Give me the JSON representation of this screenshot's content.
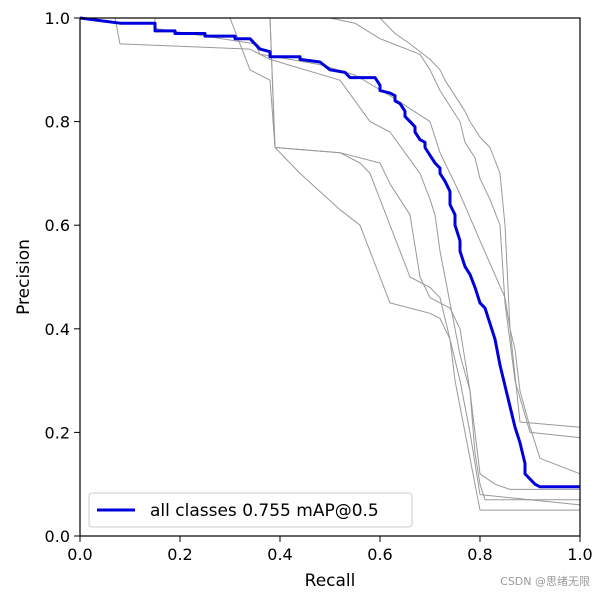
{
  "chart_data": {
    "type": "line",
    "title": "",
    "xlabel": "Recall",
    "ylabel": "Precision",
    "xlim": [
      0,
      1
    ],
    "ylim": [
      0,
      1
    ],
    "xticks": [
      "0.0",
      "0.2",
      "0.4",
      "0.6",
      "0.8",
      "1.0"
    ],
    "yticks": [
      "0.0",
      "0.2",
      "0.4",
      "0.6",
      "0.8",
      "1.0"
    ],
    "grid": false,
    "legend_position": "lower-left",
    "series": [
      {
        "role": "per-class",
        "color": "#999999",
        "x": [
          0,
          0.15,
          0.15,
          0.35,
          0.36,
          0.42,
          0.48,
          0.55,
          0.62,
          0.7,
          0.72,
          0.76,
          0.8,
          0.85,
          0.86,
          0.87,
          0.88,
          0.9,
          0.92,
          1.0
        ],
        "y": [
          1.0,
          1.0,
          0.98,
          0.95,
          0.93,
          0.92,
          0.91,
          0.89,
          0.85,
          0.8,
          0.74,
          0.66,
          0.57,
          0.46,
          0.4,
          0.36,
          0.28,
          0.21,
          0.15,
          0.12
        ]
      },
      {
        "role": "per-class",
        "color": "#999999",
        "x": [
          0,
          0.5,
          0.55,
          0.6,
          0.68,
          0.7,
          0.72,
          0.74,
          0.76,
          0.77,
          0.79,
          0.8,
          0.82,
          0.84,
          0.85,
          0.87,
          0.9,
          1.0
        ],
        "y": [
          1.0,
          1.0,
          0.99,
          0.96,
          0.93,
          0.9,
          0.86,
          0.83,
          0.8,
          0.76,
          0.73,
          0.69,
          0.65,
          0.6,
          0.45,
          0.3,
          0.2,
          0.19
        ]
      },
      {
        "role": "per-class",
        "color": "#999999",
        "x": [
          0,
          0.6,
          0.63,
          0.66,
          0.7,
          0.72,
          0.73,
          0.75,
          0.77,
          0.78,
          0.8,
          0.82,
          0.84,
          0.85,
          0.86,
          0.88,
          1.0
        ],
        "y": [
          1.0,
          1.0,
          0.97,
          0.95,
          0.92,
          0.9,
          0.88,
          0.85,
          0.82,
          0.8,
          0.77,
          0.75,
          0.7,
          0.6,
          0.4,
          0.22,
          0.21
        ]
      },
      {
        "role": "per-class",
        "color": "#999999",
        "x": [
          0,
          0.07,
          0.08,
          0.34,
          0.38,
          0.52,
          0.58,
          0.62,
          0.65,
          0.68,
          0.7,
          0.71,
          0.72,
          0.73,
          0.76,
          0.78,
          0.79,
          0.8,
          0.83,
          0.86,
          1.0
        ],
        "y": [
          1.0,
          1.0,
          0.95,
          0.94,
          0.92,
          0.88,
          0.8,
          0.78,
          0.74,
          0.7,
          0.65,
          0.62,
          0.55,
          0.5,
          0.35,
          0.28,
          0.2,
          0.12,
          0.1,
          0.09,
          0.09
        ]
      },
      {
        "role": "per-class",
        "color": "#999999",
        "x": [
          0,
          0.3,
          0.34,
          0.38,
          0.39,
          0.52,
          0.6,
          0.62,
          0.66,
          0.68,
          0.7,
          0.74,
          0.76,
          0.78,
          0.79,
          0.8,
          0.81,
          1.0
        ],
        "y": [
          1.0,
          1.0,
          0.9,
          0.88,
          0.75,
          0.74,
          0.72,
          0.68,
          0.62,
          0.5,
          0.46,
          0.44,
          0.4,
          0.28,
          0.16,
          0.1,
          0.07,
          0.07
        ]
      },
      {
        "role": "per-class",
        "color": "#999999",
        "x": [
          0,
          0.38,
          0.39,
          0.44,
          0.52,
          0.56,
          0.6,
          0.62,
          0.66,
          0.7,
          0.72,
          0.74,
          0.76,
          0.78,
          0.8,
          1.0
        ],
        "y": [
          1.0,
          1.0,
          0.75,
          0.7,
          0.63,
          0.6,
          0.5,
          0.45,
          0.44,
          0.43,
          0.42,
          0.38,
          0.3,
          0.2,
          0.08,
          0.06
        ]
      },
      {
        "role": "per-class",
        "color": "#999999",
        "x": [
          0,
          0.38,
          0.39,
          0.52,
          0.56,
          0.58,
          0.62,
          0.64,
          0.66,
          0.7,
          0.72,
          0.74,
          0.75,
          0.77,
          0.79,
          0.8,
          1.0
        ],
        "y": [
          1.0,
          1.0,
          0.75,
          0.74,
          0.72,
          0.7,
          0.6,
          0.55,
          0.5,
          0.48,
          0.46,
          0.38,
          0.3,
          0.2,
          0.1,
          0.05,
          0.05
        ]
      },
      {
        "role": "all",
        "name": "all classes 0.755 mAP@0.5",
        "color": "#0000dd",
        "x": [
          0,
          0.08,
          0.15,
          0.15,
          0.19,
          0.19,
          0.25,
          0.25,
          0.31,
          0.31,
          0.34,
          0.35,
          0.36,
          0.38,
          0.38,
          0.44,
          0.44,
          0.48,
          0.5,
          0.53,
          0.54,
          0.59,
          0.6,
          0.6,
          0.62,
          0.63,
          0.63,
          0.64,
          0.65,
          0.65,
          0.66,
          0.67,
          0.67,
          0.68,
          0.69,
          0.69,
          0.7,
          0.71,
          0.72,
          0.72,
          0.73,
          0.74,
          0.74,
          0.75,
          0.75,
          0.76,
          0.76,
          0.77,
          0.78,
          0.79,
          0.8,
          0.81,
          0.82,
          0.83,
          0.84,
          0.85,
          0.86,
          0.87,
          0.88,
          0.89,
          0.89,
          0.9,
          0.91,
          0.92,
          1.0
        ],
        "y": [
          1.0,
          0.99,
          0.99,
          0.975,
          0.975,
          0.97,
          0.97,
          0.965,
          0.965,
          0.96,
          0.96,
          0.95,
          0.94,
          0.935,
          0.925,
          0.925,
          0.92,
          0.915,
          0.9,
          0.895,
          0.885,
          0.885,
          0.87,
          0.86,
          0.855,
          0.85,
          0.84,
          0.835,
          0.82,
          0.81,
          0.8,
          0.79,
          0.78,
          0.765,
          0.76,
          0.75,
          0.735,
          0.72,
          0.71,
          0.7,
          0.685,
          0.665,
          0.64,
          0.62,
          0.6,
          0.57,
          0.55,
          0.52,
          0.505,
          0.48,
          0.45,
          0.44,
          0.41,
          0.38,
          0.33,
          0.29,
          0.25,
          0.21,
          0.18,
          0.14,
          0.12,
          0.11,
          0.1,
          0.095,
          0.095
        ]
      }
    ]
  },
  "watermark": "CSDN @思绪无限"
}
